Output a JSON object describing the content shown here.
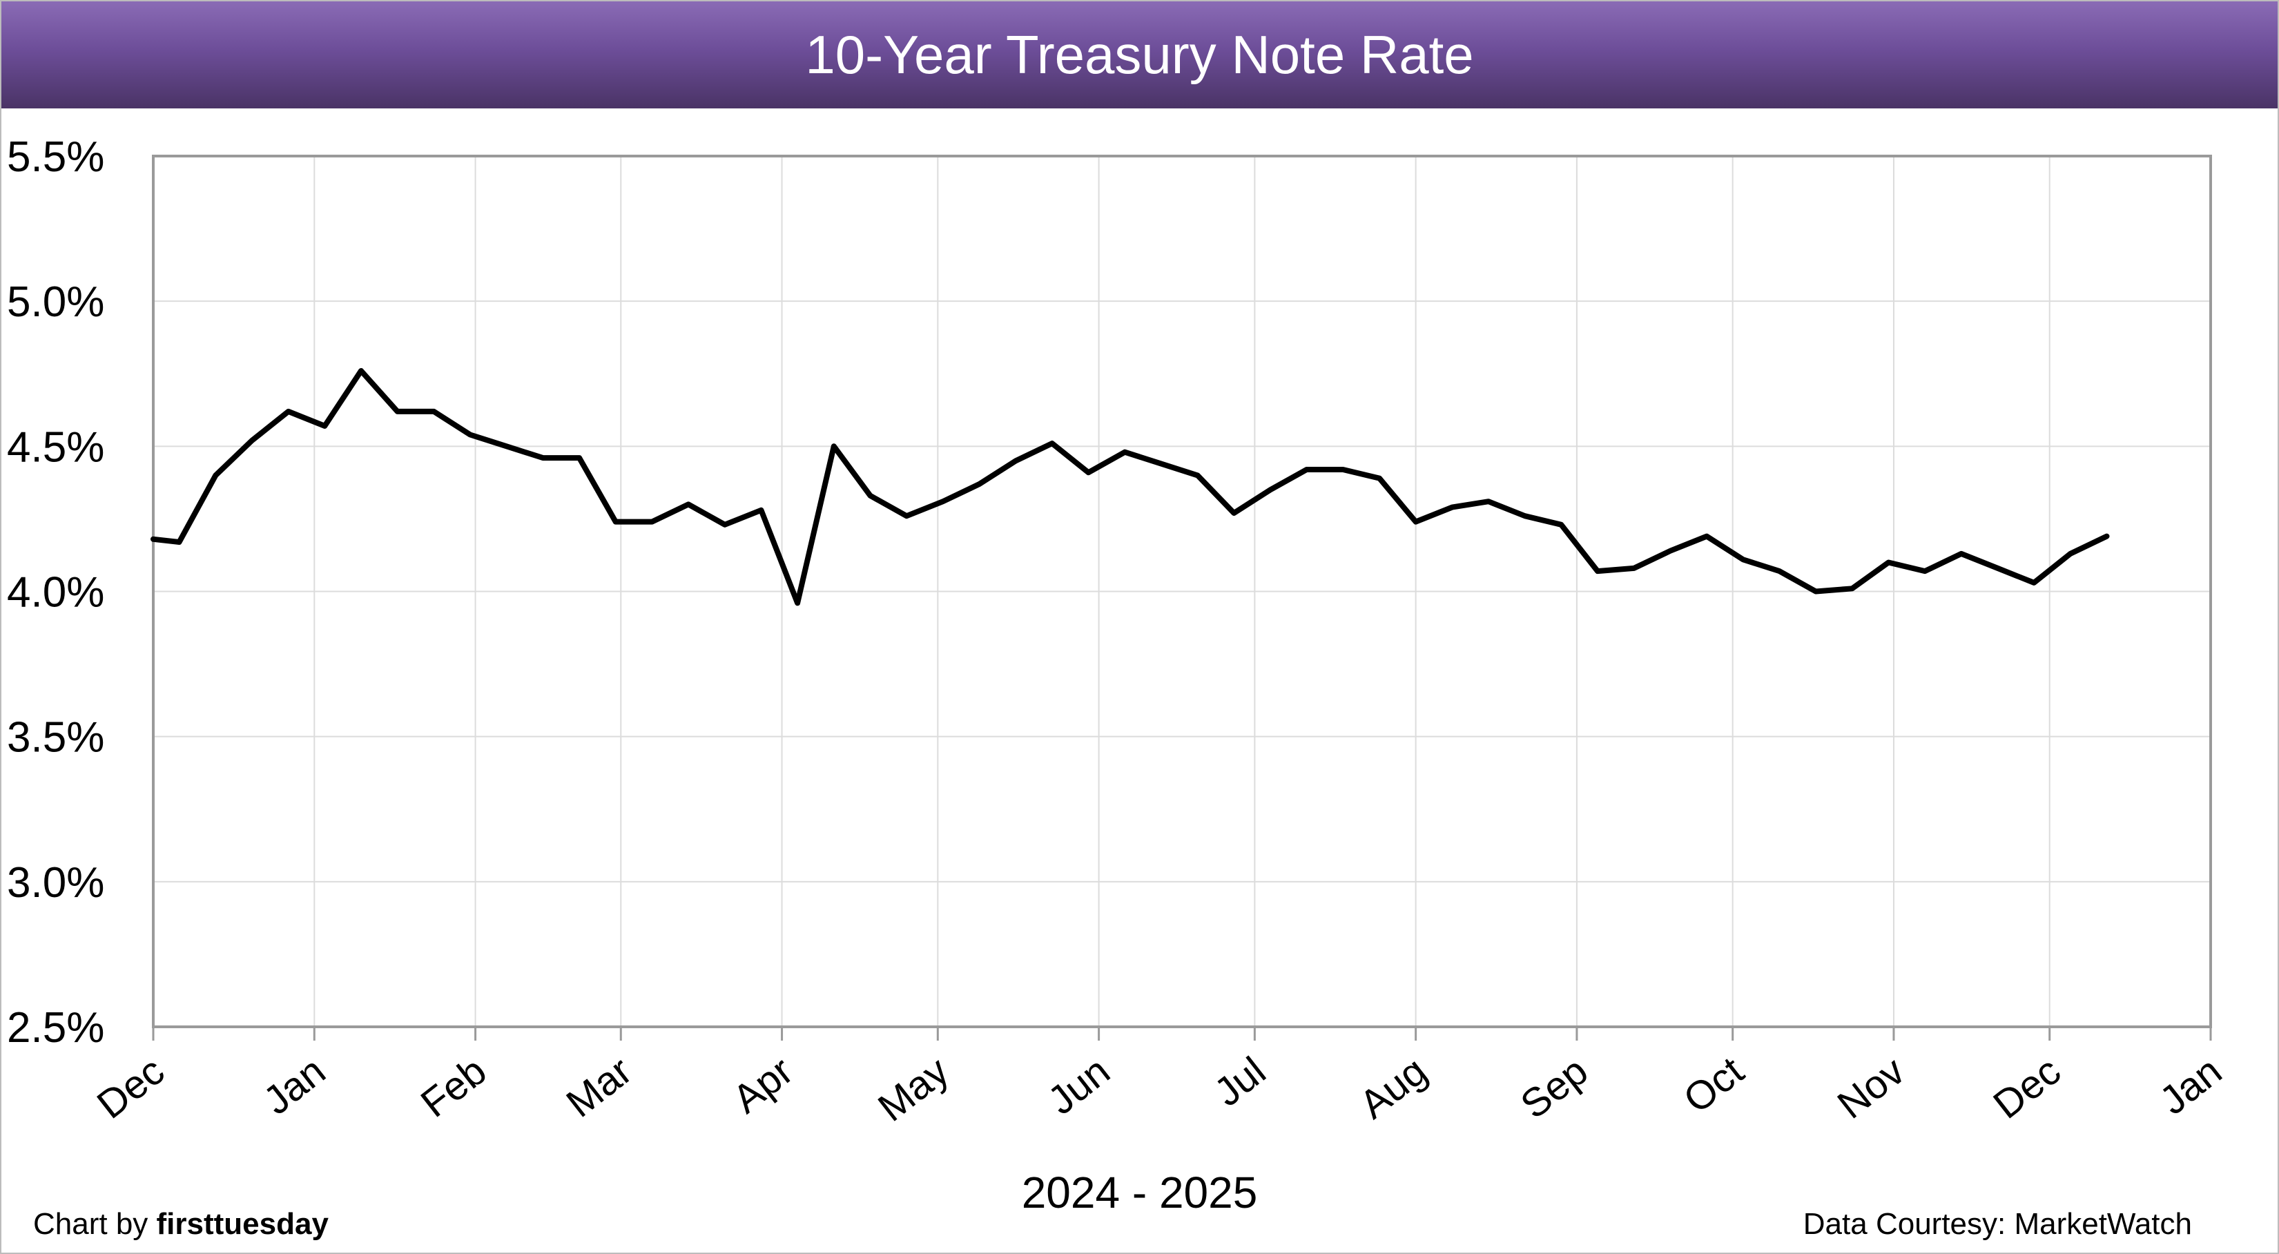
{
  "chart_data": {
    "type": "line",
    "title": "10-Year Treasury Note Rate",
    "xlabel": "2024 - 2025",
    "ylabel": "",
    "ylim": [
      2.5,
      5.5
    ],
    "y_ticks": [
      "5.5%",
      "5.0%",
      "4.5%",
      "4.0%",
      "3.5%",
      "3.0%",
      "2.5%"
    ],
    "y_tick_values": [
      5.5,
      5.0,
      4.5,
      4.0,
      3.5,
      3.0,
      2.5
    ],
    "x_tick_labels": [
      "Dec",
      "Jan",
      "Feb",
      "Mar",
      "Apr",
      "May",
      "Jun",
      "Jul",
      "Aug",
      "Sep",
      "Oct",
      "Nov",
      "Dec",
      "Jan"
    ],
    "x_tick_dates": [
      "2024-12-01",
      "2025-01-01",
      "2025-02-01",
      "2025-03-01",
      "2025-04-01",
      "2025-05-01",
      "2025-06-01",
      "2025-07-01",
      "2025-08-01",
      "2025-09-01",
      "2025-10-01",
      "2025-11-01",
      "2025-12-01",
      "2026-01-01"
    ],
    "grid": true,
    "line_color": "#000000",
    "series": [
      {
        "x": [
          "2024-12-01",
          "2024-12-06",
          "2024-12-13",
          "2024-12-20",
          "2024-12-27",
          "2025-01-03",
          "2025-01-10",
          "2025-01-17",
          "2025-01-24",
          "2025-01-31",
          "2025-02-07",
          "2025-02-14",
          "2025-02-21",
          "2025-02-28",
          "2025-03-07",
          "2025-03-14",
          "2025-03-21",
          "2025-03-28",
          "2025-04-04",
          "2025-04-11",
          "2025-04-18",
          "2025-04-25",
          "2025-05-02",
          "2025-05-09",
          "2025-05-16",
          "2025-05-23",
          "2025-05-30",
          "2025-06-06",
          "2025-06-13",
          "2025-06-20",
          "2025-06-27",
          "2025-07-04",
          "2025-07-11",
          "2025-07-18",
          "2025-07-25",
          "2025-08-01",
          "2025-08-08",
          "2025-08-15",
          "2025-08-22",
          "2025-08-29",
          "2025-09-05",
          "2025-09-12",
          "2025-09-19",
          "2025-09-26",
          "2025-10-03",
          "2025-10-10",
          "2025-10-17",
          "2025-10-24",
          "2025-10-31",
          "2025-11-07",
          "2025-11-14",
          "2025-11-21",
          "2025-11-28",
          "2025-12-05",
          "2025-12-12"
        ],
        "values": [
          4.18,
          4.17,
          4.4,
          4.52,
          4.62,
          4.57,
          4.76,
          4.62,
          4.62,
          4.54,
          4.5,
          4.46,
          4.46,
          4.24,
          4.24,
          4.3,
          4.23,
          4.28,
          3.96,
          4.5,
          4.33,
          4.26,
          4.31,
          4.37,
          4.45,
          4.51,
          4.41,
          4.48,
          4.44,
          4.4,
          4.27,
          4.35,
          4.42,
          4.42,
          4.39,
          4.24,
          4.29,
          4.31,
          4.26,
          4.23,
          4.07,
          4.08,
          4.14,
          4.19,
          4.11,
          4.07,
          4.0,
          4.01,
          4.1,
          4.07,
          4.13,
          4.08,
          4.03,
          4.13,
          4.19
        ]
      }
    ]
  },
  "footer": {
    "credit_prefix": "Chart by ",
    "credit_brand": "firsttuesday",
    "source": "Data Courtesy: MarketWatch"
  },
  "colors": {
    "title_bar_top": "#8a6bb5",
    "title_bar_bottom": "#4a3366",
    "title_text": "#ffffff",
    "grid": "#dcdcdc",
    "axis": "#9a9a9a"
  }
}
